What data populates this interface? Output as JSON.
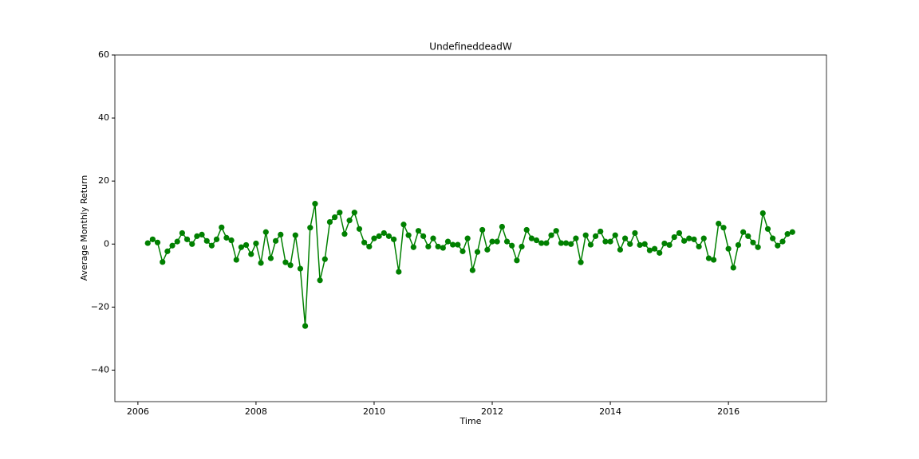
{
  "chart_data": {
    "type": "line",
    "title": "UndefineddeadW",
    "xlabel": "Time",
    "ylabel": "Average Monthly Return",
    "x": [
      2006.167,
      2006.25,
      2006.333,
      2006.417,
      2006.5,
      2006.583,
      2006.667,
      2006.75,
      2006.833,
      2006.917,
      2007,
      2007.083,
      2007.167,
      2007.25,
      2007.333,
      2007.417,
      2007.5,
      2007.583,
      2007.667,
      2007.75,
      2007.833,
      2007.917,
      2008,
      2008.083,
      2008.167,
      2008.25,
      2008.333,
      2008.417,
      2008.5,
      2008.583,
      2008.667,
      2008.75,
      2008.833,
      2008.917,
      2009,
      2009.083,
      2009.167,
      2009.25,
      2009.333,
      2009.417,
      2009.5,
      2009.583,
      2009.667,
      2009.75,
      2009.833,
      2009.917,
      2010,
      2010.083,
      2010.167,
      2010.25,
      2010.333,
      2010.417,
      2010.5,
      2010.583,
      2010.667,
      2010.75,
      2010.833,
      2010.917,
      2011,
      2011.083,
      2011.167,
      2011.25,
      2011.333,
      2011.417,
      2011.5,
      2011.583,
      2011.667,
      2011.75,
      2011.833,
      2011.917,
      2012,
      2012.083,
      2012.167,
      2012.25,
      2012.333,
      2012.417,
      2012.5,
      2012.583,
      2012.667,
      2012.75,
      2012.833,
      2012.917,
      2013,
      2013.083,
      2013.167,
      2013.25,
      2013.333,
      2013.417,
      2013.5,
      2013.583,
      2013.667,
      2013.75,
      2013.833,
      2013.917,
      2014,
      2014.083,
      2014.167,
      2014.25,
      2014.333,
      2014.417,
      2014.5,
      2014.583,
      2014.667,
      2014.75,
      2014.833,
      2014.917,
      2015,
      2015.083,
      2015.167,
      2015.25,
      2015.333,
      2015.417,
      2015.5,
      2015.583,
      2015.667,
      2015.75,
      2015.833,
      2015.917,
      2016,
      2016.083,
      2016.167,
      2016.25,
      2016.333,
      2016.417,
      2016.5,
      2016.583,
      2016.667,
      2016.75,
      2016.833,
      2016.917,
      2017,
      2017.083
    ],
    "series": [
      {
        "name": "UndefineddeadW",
        "color": "#008000",
        "values": [
          0.3,
          1.5,
          0.5,
          -5.7,
          -2.3,
          -0.5,
          0.8,
          3.5,
          1.5,
          0,
          2.5,
          3,
          1,
          -0.5,
          1.5,
          5.3,
          2,
          1.2,
          -5,
          -1,
          -0.3,
          -3.2,
          0.2,
          -6,
          3.8,
          -4.5,
          1,
          3,
          -5.8,
          -6.7,
          2.8,
          -7.8,
          -26,
          5.2,
          12.8,
          -11.5,
          -4.8,
          7,
          8.5,
          10,
          3.2,
          7.5,
          10,
          4.8,
          0.5,
          -0.8,
          1.8,
          2.5,
          3.5,
          2.5,
          1.5,
          -8.8,
          6.2,
          2.8,
          -1,
          4.2,
          2.5,
          -0.8,
          1.8,
          -0.8,
          -1.2,
          0.8,
          -0.2,
          -0.2,
          -2.3,
          1.8,
          -8.3,
          -2.5,
          4.5,
          -1.8,
          0.8,
          0.8,
          5.5,
          0.8,
          -0.5,
          -5.2,
          -0.8,
          4.5,
          1.8,
          1.2,
          0.3,
          0.3,
          2.8,
          4.2,
          0.3,
          0.3,
          0,
          1.8,
          -5.8,
          2.8,
          -0.2,
          2.5,
          4,
          0.8,
          0.8,
          2.8,
          -1.8,
          1.8,
          0,
          3.5,
          -0.3,
          0,
          -2,
          -1.5,
          -2.8,
          0.2,
          -0.3,
          2.2,
          3.5,
          1,
          1.8,
          1.5,
          -0.8,
          1.8,
          -4.5,
          -5,
          6.5,
          5.2,
          -1.5,
          -7.5,
          -0.3,
          3.8,
          2.5,
          0.5,
          -1,
          9.8,
          4.8,
          1.8,
          -0.5,
          0.8,
          3.2,
          3.8
        ]
      }
    ],
    "xlim": [
      2005.61,
      2017.66
    ],
    "xticks": [
      2006,
      2008,
      2010,
      2012,
      2014,
      2016
    ],
    "ylim": [
      -50,
      60
    ],
    "yticks": [
      {
        "value": -40,
        "label": "−40"
      },
      {
        "value": -20,
        "label": "−20"
      },
      0,
      20,
      40,
      60
    ],
    "grid": false
  }
}
